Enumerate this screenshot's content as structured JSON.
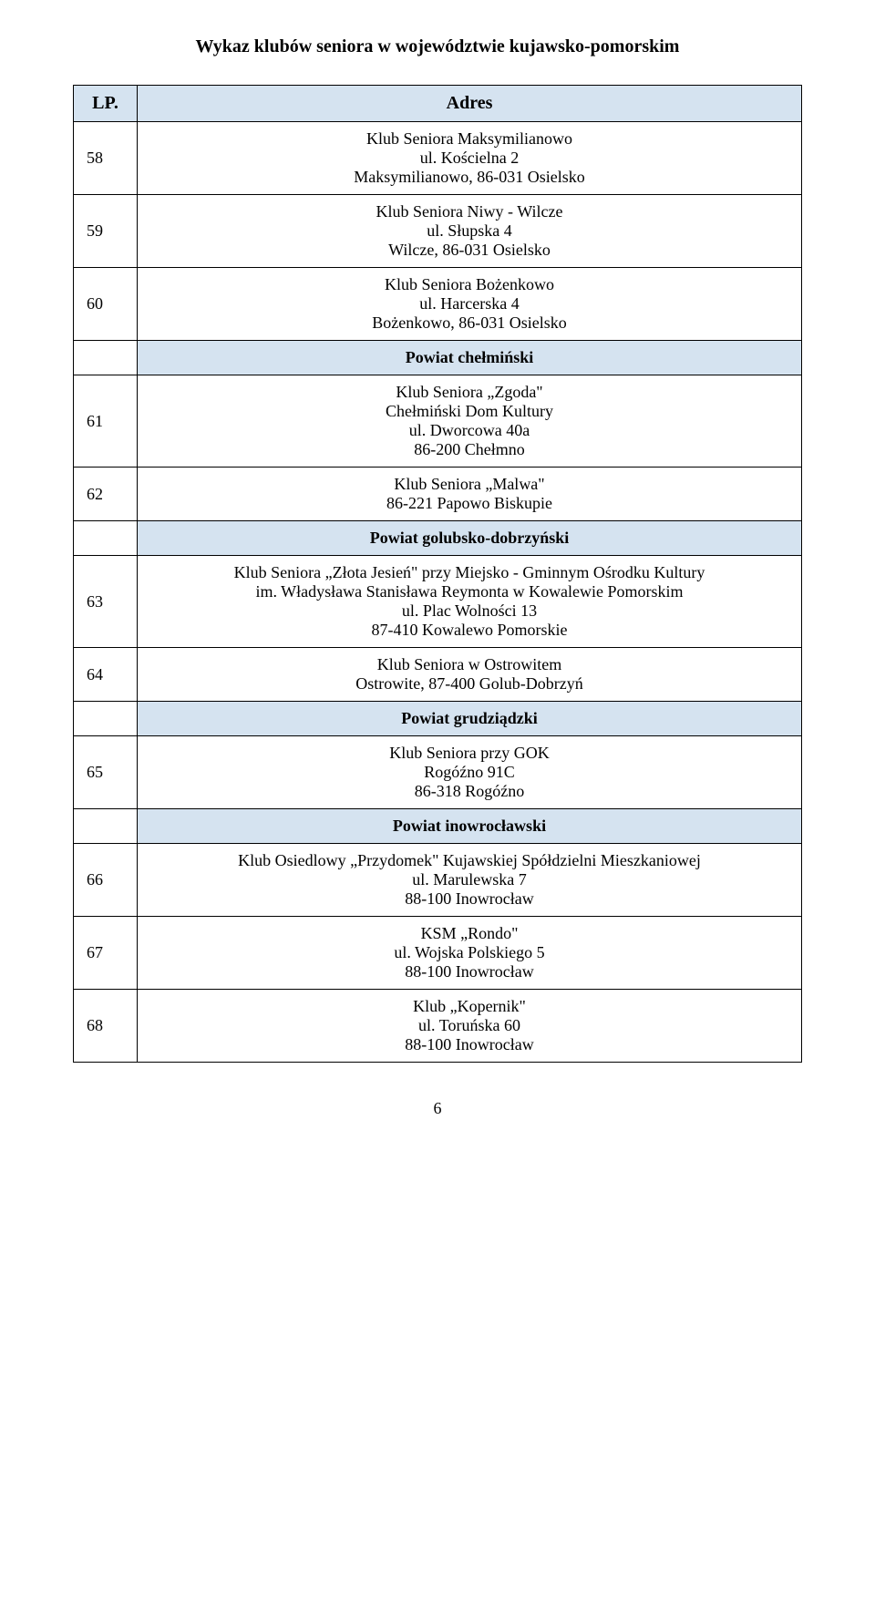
{
  "title": "Wykaz klubów seniora w województwie kujawsko-pomorskim",
  "headers": {
    "lp": "LP.",
    "addr": "Adres"
  },
  "colors": {
    "header_bg": "#d5e3f0",
    "border": "#000000",
    "bg": "#ffffff",
    "text": "#000000"
  },
  "rows": [
    {
      "lp": "58",
      "lines": [
        "Klub Seniora Maksymilianowo",
        "ul. Kościelna 2",
        "Maksymilianowo, 86-031 Osielsko"
      ]
    },
    {
      "lp": "59",
      "lines": [
        "Klub Seniora Niwy - Wilcze",
        "ul. Słupska 4",
        "Wilcze, 86-031 Osielsko"
      ]
    },
    {
      "lp": "60",
      "lines": [
        "Klub Seniora Bożenkowo",
        "ul. Harcerska 4",
        "Bożenkowo,  86-031 Osielsko"
      ]
    },
    {
      "section": "Powiat chełmiński"
    },
    {
      "lp": "61",
      "lines": [
        "Klub Seniora „Zgoda\"",
        "Chełmiński Dom Kultury",
        "ul. Dworcowa 40a",
        "86-200 Chełmno"
      ]
    },
    {
      "lp": "62",
      "lines": [
        "Klub Seniora „Malwa\"",
        "86-221 Papowo Biskupie"
      ]
    },
    {
      "section": "Powiat golubsko-dobrzyński"
    },
    {
      "lp": "63",
      "lines": [
        "Klub Seniora „Złota Jesień\" przy Miejsko - Gminnym Ośrodku Kultury",
        "im. Władysława Stanisława Reymonta w Kowalewie Pomorskim",
        "ul. Plac Wolności 13",
        "87-410 Kowalewo Pomorskie"
      ]
    },
    {
      "lp": "64",
      "lines": [
        "Klub Seniora w Ostrowitem",
        "Ostrowite, 87-400 Golub-Dobrzyń"
      ]
    },
    {
      "section": "Powiat grudziądzki"
    },
    {
      "lp": "65",
      "lines": [
        "Klub Seniora przy GOK",
        "Rogóźno 91C",
        "86-318 Rogóźno"
      ]
    },
    {
      "section": "Powiat inowrocławski"
    },
    {
      "lp": "66",
      "lines": [
        "Klub Osiedlowy „Przydomek\" Kujawskiej Spółdzielni Mieszkaniowej",
        "ul. Marulewska 7",
        "88-100 Inowrocław"
      ]
    },
    {
      "lp": "67",
      "lines": [
        "KSM „Rondo\"",
        "ul. Wojska Polskiego 5",
        "88-100 Inowrocław"
      ]
    },
    {
      "lp": "68",
      "lines": [
        "Klub „Kopernik\"",
        "ul. Toruńska 60",
        "88-100 Inowrocław"
      ]
    }
  ],
  "page_number": "6"
}
